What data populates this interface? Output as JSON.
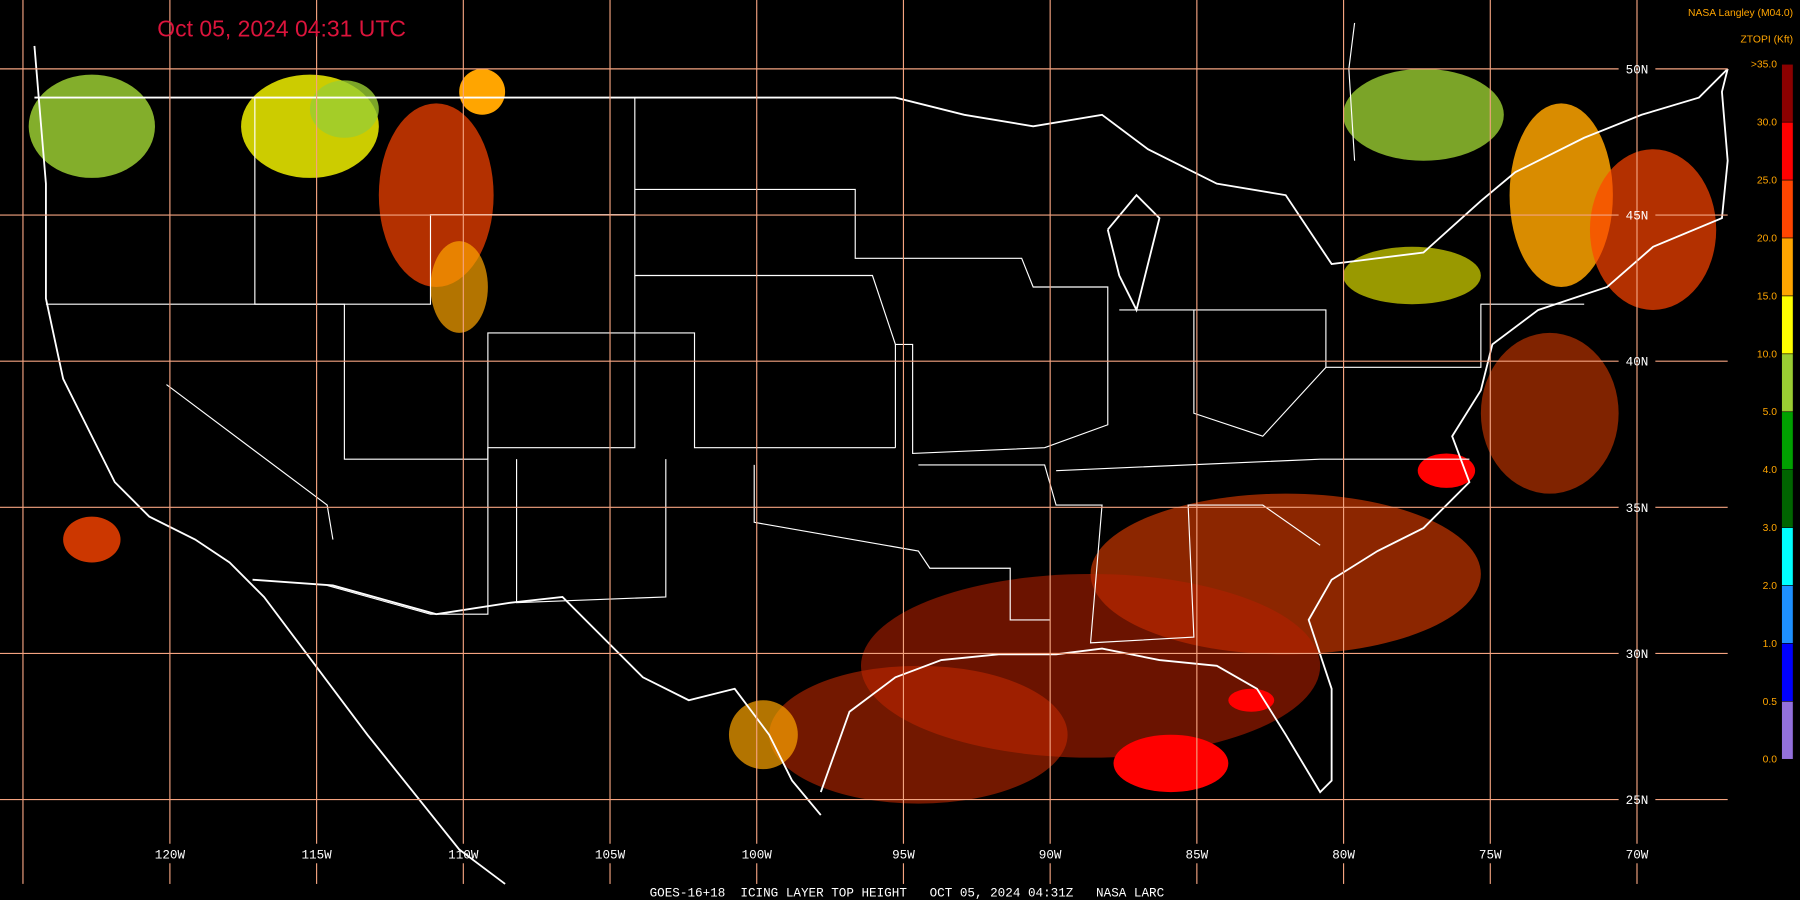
{
  "header": {
    "title": "Oct 05, 2024 04:31 UTC",
    "source": "NASA Langley (M04.0)"
  },
  "legend": {
    "title": "ZTOPI (Kft)",
    "labels": [
      ">35.0",
      "30.0",
      "25.0",
      "20.0",
      "15.0",
      "10.0",
      "5.0",
      "4.0",
      "3.0",
      "2.0",
      "1.0",
      "0.5",
      "0.0"
    ],
    "colors": [
      "#8b0000",
      "#ff0000",
      "#ff4500",
      "#ffa500",
      "#ffff00",
      "#9acd32",
      "#00a000",
      "#006400",
      "#00ffff",
      "#1e90ff",
      "#0000ff",
      "#9370db"
    ]
  },
  "map": {
    "latitude_labels": [
      "50N",
      "45N",
      "40N",
      "35N",
      "30N",
      "25N"
    ],
    "longitude_labels": [
      "120W",
      "115W",
      "110W",
      "105W",
      "100W",
      "95W",
      "90W",
      "85W",
      "80W",
      "75W",
      "70W"
    ]
  },
  "footer": "GOES-16+18  ICING LAYER TOP HEIGHT   OCT 05, 2024 04:31Z   NASA LARC"
}
